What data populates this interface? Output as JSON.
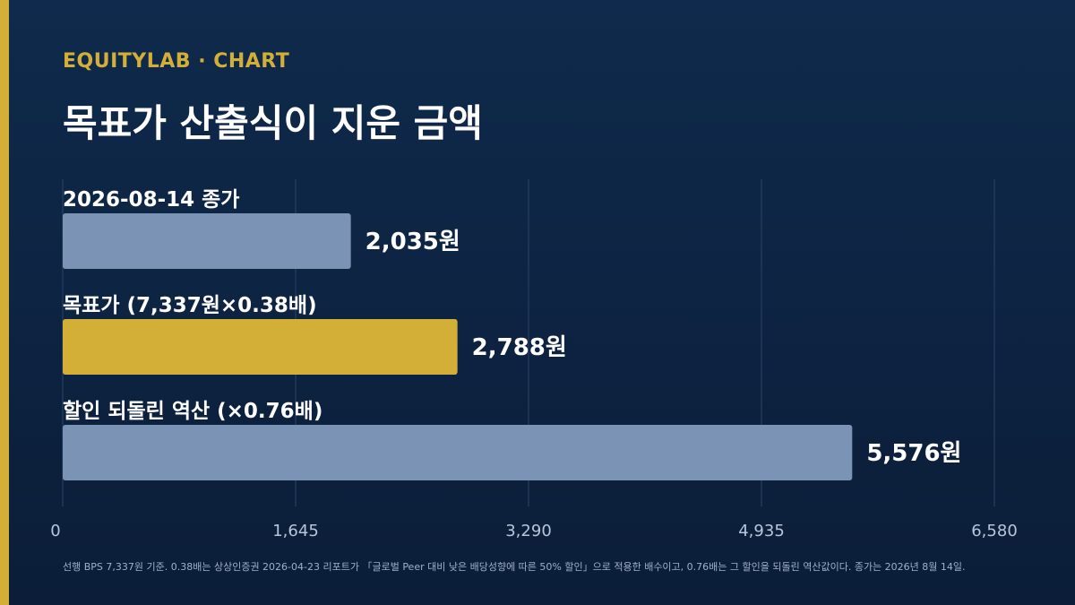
{
  "header": {
    "kicker": "EQUITYLAB · CHART",
    "title": "목표가 산출식이 지운 금액"
  },
  "colors": {
    "accent": "#d4af37",
    "bar_default": "#7b93b5",
    "bar_highlight": "#d4af37",
    "grid": "#2c4466"
  },
  "chart_data": {
    "type": "bar",
    "orientation": "horizontal",
    "categories": [
      "2026-08-14 종가",
      "목표가 (7,337원×0.38배)",
      "할인 되돌린 역산 (×0.76배)"
    ],
    "values": [
      2035,
      2788,
      5576
    ],
    "value_labels": [
      "2,035원",
      "2,788원",
      "5,576원"
    ],
    "highlight_index": 1,
    "xlim": [
      0,
      6580
    ],
    "xticks": [
      0,
      1645,
      3290,
      4935,
      6580
    ],
    "xtick_labels": [
      "0",
      "1,645",
      "3,290",
      "4,935",
      "6,580"
    ],
    "grid": true
  },
  "footnote": "선행 BPS 7,337원 기준. 0.38배는 상상인증권 2026-04-23 리포트가 「글로벌 Peer 대비 낮은 배당성향에 따른 50% 할인」으로 적용한 배수이고, 0.76배는 그 할인을 되돌린 역산값이다. 종가는 2026년 8월 14일."
}
